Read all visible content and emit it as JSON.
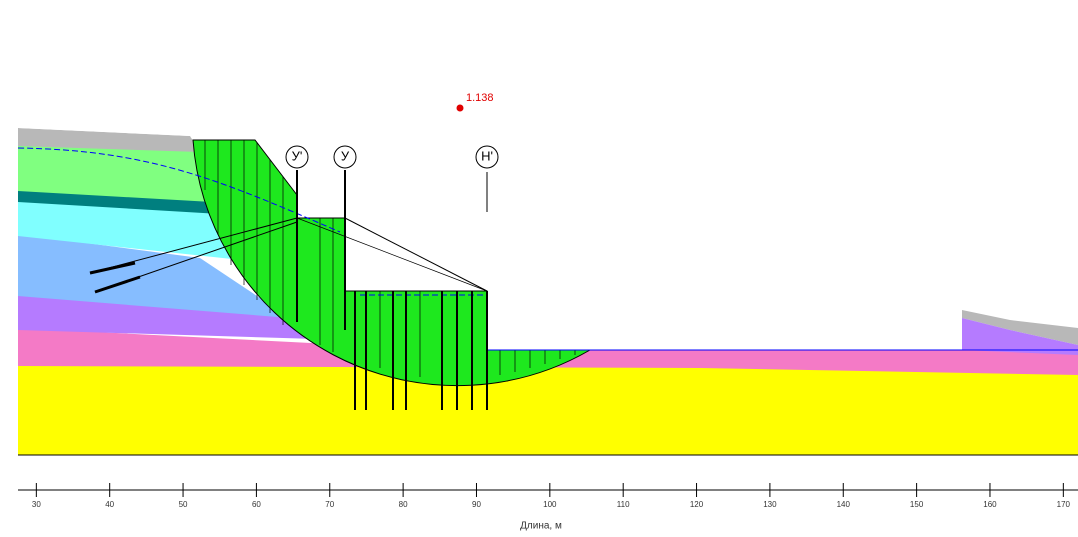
{
  "chart_data": {
    "type": "cross-section",
    "xlabel": "Длина, м",
    "xlim": [
      27.5,
      172
    ],
    "xticks": [
      30,
      40,
      50,
      60,
      70,
      80,
      90,
      100,
      110,
      120,
      130,
      140,
      150,
      160,
      170
    ],
    "safety_factor": "1.138",
    "annotations": [
      "У'",
      "У",
      "Н'"
    ]
  }
}
